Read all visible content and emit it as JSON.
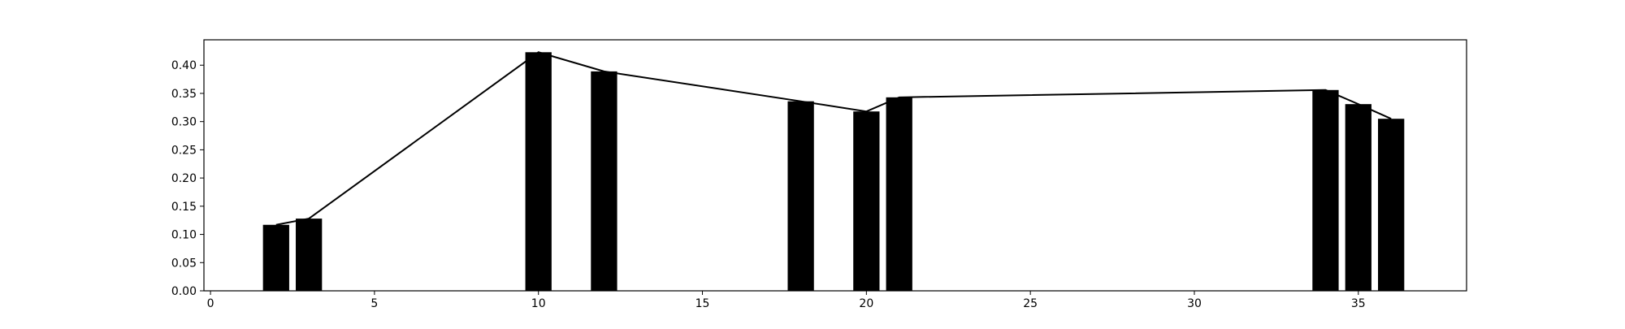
{
  "chart_data": {
    "type": "bar",
    "title": "",
    "xlabel": "",
    "ylabel": "",
    "xlim": [
      -0.2,
      38.3
    ],
    "ylim": [
      0,
      0.445
    ],
    "grid": false,
    "bar_color": "#000000",
    "line_color": "#000000",
    "xticks": [
      0,
      5,
      10,
      15,
      20,
      25,
      30,
      35
    ],
    "yticks": [
      0.0,
      0.05,
      0.1,
      0.15,
      0.2,
      0.25,
      0.3,
      0.35,
      0.4
    ],
    "xtick_labels": [
      "0",
      "5",
      "10",
      "15",
      "20",
      "25",
      "30",
      "35"
    ],
    "ytick_labels": [
      "0.00",
      "0.05",
      "0.10",
      "0.15",
      "0.20",
      "0.25",
      "0.30",
      "0.35",
      "0.40"
    ],
    "bar_width": 0.8,
    "x": [
      2,
      3,
      10,
      12,
      18,
      20,
      21,
      34,
      35,
      36
    ],
    "values": [
      0.117,
      0.128,
      0.423,
      0.389,
      0.336,
      0.318,
      0.343,
      0.356,
      0.331,
      0.305
    ],
    "line": {
      "x": [
        2,
        3,
        10,
        12,
        18,
        20,
        21,
        34,
        35,
        36
      ],
      "values": [
        0.117,
        0.128,
        0.423,
        0.389,
        0.336,
        0.318,
        0.343,
        0.356,
        0.331,
        0.305
      ]
    }
  }
}
